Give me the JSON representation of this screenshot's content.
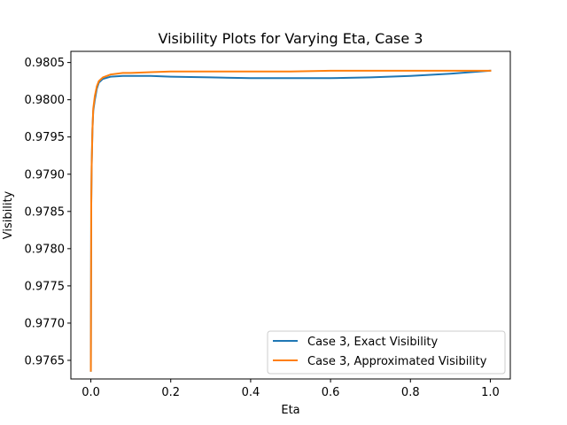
{
  "chart_data": {
    "type": "line",
    "title": "Visibility Plots for Varying Eta, Case 3",
    "xlabel": "Eta",
    "ylabel": "Visibility",
    "xlim": [
      -0.05,
      1.05
    ],
    "ylim": [
      0.97625,
      0.98065
    ],
    "xticks": [
      0.0,
      0.2,
      0.4,
      0.6,
      0.8,
      1.0
    ],
    "xtick_labels": [
      "0.0",
      "0.2",
      "0.4",
      "0.6",
      "0.8",
      "1.0"
    ],
    "yticks": [
      0.9765,
      0.977,
      0.9775,
      0.978,
      0.9785,
      0.979,
      0.9795,
      0.98,
      0.9805
    ],
    "ytick_labels": [
      "0.9765",
      "0.9770",
      "0.9775",
      "0.9780",
      "0.9785",
      "0.9790",
      "0.9795",
      "0.9800",
      "0.9805"
    ],
    "grid": false,
    "legend_position": "lower-right",
    "series": [
      {
        "name": "Case 3, Exact Visibility",
        "color": "#1f77b4",
        "x": [
          0.0,
          0.001,
          0.002,
          0.004,
          0.006,
          0.01,
          0.015,
          0.02,
          0.03,
          0.05,
          0.08,
          0.1,
          0.15,
          0.2,
          0.3,
          0.4,
          0.5,
          0.6,
          0.7,
          0.8,
          0.9,
          1.0
        ],
        "y": [
          0.97636,
          0.9786,
          0.9791,
          0.9796,
          0.97985,
          0.98,
          0.98015,
          0.98023,
          0.98028,
          0.98031,
          0.98032,
          0.98032,
          0.98032,
          0.98031,
          0.9803,
          0.98029,
          0.98029,
          0.98029,
          0.9803,
          0.98032,
          0.98035,
          0.98039
        ]
      },
      {
        "name": "Case 3, Approximated Visibility",
        "color": "#ff7f0e",
        "x": [
          0.0,
          0.001,
          0.002,
          0.004,
          0.006,
          0.01,
          0.015,
          0.02,
          0.03,
          0.05,
          0.08,
          0.1,
          0.15,
          0.2,
          0.3,
          0.4,
          0.5,
          0.6,
          0.7,
          0.8,
          0.9,
          1.0
        ],
        "y": [
          0.97636,
          0.9786,
          0.9791,
          0.9796,
          0.97988,
          0.98005,
          0.98018,
          0.98025,
          0.9803,
          0.98034,
          0.98036,
          0.98036,
          0.98037,
          0.98038,
          0.98038,
          0.98038,
          0.98038,
          0.98039,
          0.98039,
          0.98039,
          0.98039,
          0.98039
        ]
      }
    ]
  }
}
